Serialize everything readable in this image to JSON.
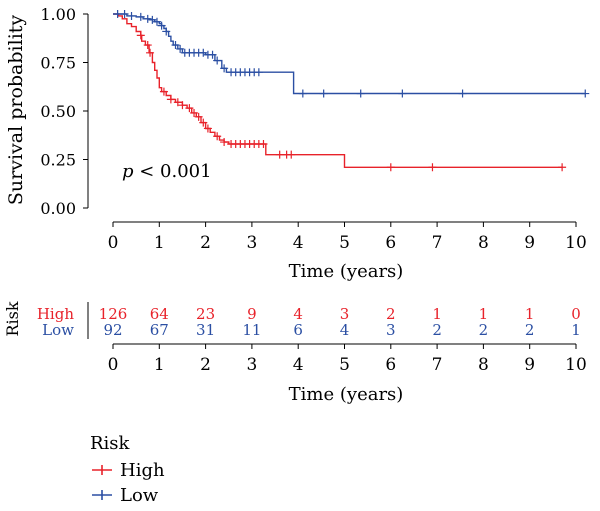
{
  "chart_data": {
    "type": "line",
    "title": "",
    "xlabel": "Time (years)",
    "ylabel": "Survival probability",
    "xlim": [
      0,
      10.5
    ],
    "ylim": [
      0,
      1.05
    ],
    "xticks": [
      0,
      1,
      2,
      3,
      4,
      5,
      6,
      7,
      8,
      9,
      10
    ],
    "yticks": [
      "0.00",
      "0.25",
      "0.50",
      "0.75",
      "1.00"
    ],
    "annotation": {
      "italic": "p",
      "rest": " < 0.001"
    },
    "grid": false,
    "series": [
      {
        "name": "High",
        "color": "#e8222a",
        "steps": [
          [
            0,
            1.0
          ],
          [
            0.12,
            0.99
          ],
          [
            0.2,
            0.975
          ],
          [
            0.3,
            0.95
          ],
          [
            0.4,
            0.935
          ],
          [
            0.5,
            0.91
          ],
          [
            0.6,
            0.89
          ],
          [
            0.62,
            0.86
          ],
          [
            0.7,
            0.84
          ],
          [
            0.78,
            0.8
          ],
          [
            0.85,
            0.75
          ],
          [
            0.9,
            0.71
          ],
          [
            0.95,
            0.67
          ],
          [
            1.0,
            0.62
          ],
          [
            1.05,
            0.6
          ],
          [
            1.15,
            0.58
          ],
          [
            1.25,
            0.56
          ],
          [
            1.35,
            0.545
          ],
          [
            1.5,
            0.53
          ],
          [
            1.6,
            0.515
          ],
          [
            1.7,
            0.49
          ],
          [
            1.8,
            0.47
          ],
          [
            1.9,
            0.44
          ],
          [
            2.0,
            0.41
          ],
          [
            2.1,
            0.39
          ],
          [
            2.2,
            0.37
          ],
          [
            2.3,
            0.35
          ],
          [
            2.4,
            0.34
          ],
          [
            2.5,
            0.33
          ],
          [
            3.3,
            0.275
          ],
          [
            5.0,
            0.21
          ],
          [
            9.7,
            0.21
          ]
        ],
        "censor": [
          0.6,
          0.75,
          0.8,
          1.1,
          1.25,
          1.4,
          1.5,
          1.65,
          1.75,
          1.85,
          1.95,
          2.05,
          2.25,
          2.4,
          2.55,
          2.65,
          2.75,
          2.85,
          2.95,
          3.05,
          3.15,
          3.25,
          3.6,
          3.75,
          3.85,
          6.0,
          6.9,
          9.7
        ]
      },
      {
        "name": "Low",
        "color": "#2b4fa3",
        "steps": [
          [
            0,
            1.0
          ],
          [
            0.3,
            0.99
          ],
          [
            0.5,
            0.985
          ],
          [
            0.65,
            0.975
          ],
          [
            0.8,
            0.97
          ],
          [
            0.9,
            0.96
          ],
          [
            1.0,
            0.95
          ],
          [
            1.05,
            0.94
          ],
          [
            1.1,
            0.925
          ],
          [
            1.15,
            0.91
          ],
          [
            1.2,
            0.885
          ],
          [
            1.25,
            0.86
          ],
          [
            1.3,
            0.84
          ],
          [
            1.4,
            0.82
          ],
          [
            1.5,
            0.8
          ],
          [
            2.0,
            0.79
          ],
          [
            2.2,
            0.76
          ],
          [
            2.35,
            0.72
          ],
          [
            2.45,
            0.7
          ],
          [
            3.9,
            0.59
          ],
          [
            10.2,
            0.59
          ]
        ],
        "censor": [
          0.1,
          0.25,
          0.4,
          0.6,
          0.75,
          0.85,
          0.95,
          1.05,
          1.15,
          1.35,
          1.45,
          1.55,
          1.65,
          1.75,
          1.85,
          1.95,
          2.05,
          2.15,
          2.25,
          2.4,
          2.55,
          2.65,
          2.75,
          2.85,
          2.95,
          3.05,
          3.15,
          4.1,
          4.55,
          5.35,
          6.25,
          7.55,
          10.2
        ]
      }
    ]
  },
  "risk_table": {
    "title": "Risk",
    "xlabel": "Time (years)",
    "times": [
      0,
      1,
      2,
      3,
      4,
      5,
      6,
      7,
      8,
      9,
      10
    ],
    "rows": [
      {
        "label": "High",
        "color": "#e8222a",
        "values": [
          126,
          64,
          23,
          9,
          4,
          3,
          2,
          1,
          1,
          1,
          0
        ]
      },
      {
        "label": "Low",
        "color": "#2b4fa3",
        "values": [
          92,
          67,
          31,
          11,
          6,
          4,
          3,
          2,
          2,
          2,
          1
        ]
      }
    ]
  },
  "legend": {
    "title": "Risk",
    "items": [
      {
        "label": "High",
        "color": "#e8222a"
      },
      {
        "label": "Low",
        "color": "#2b4fa3"
      }
    ]
  }
}
